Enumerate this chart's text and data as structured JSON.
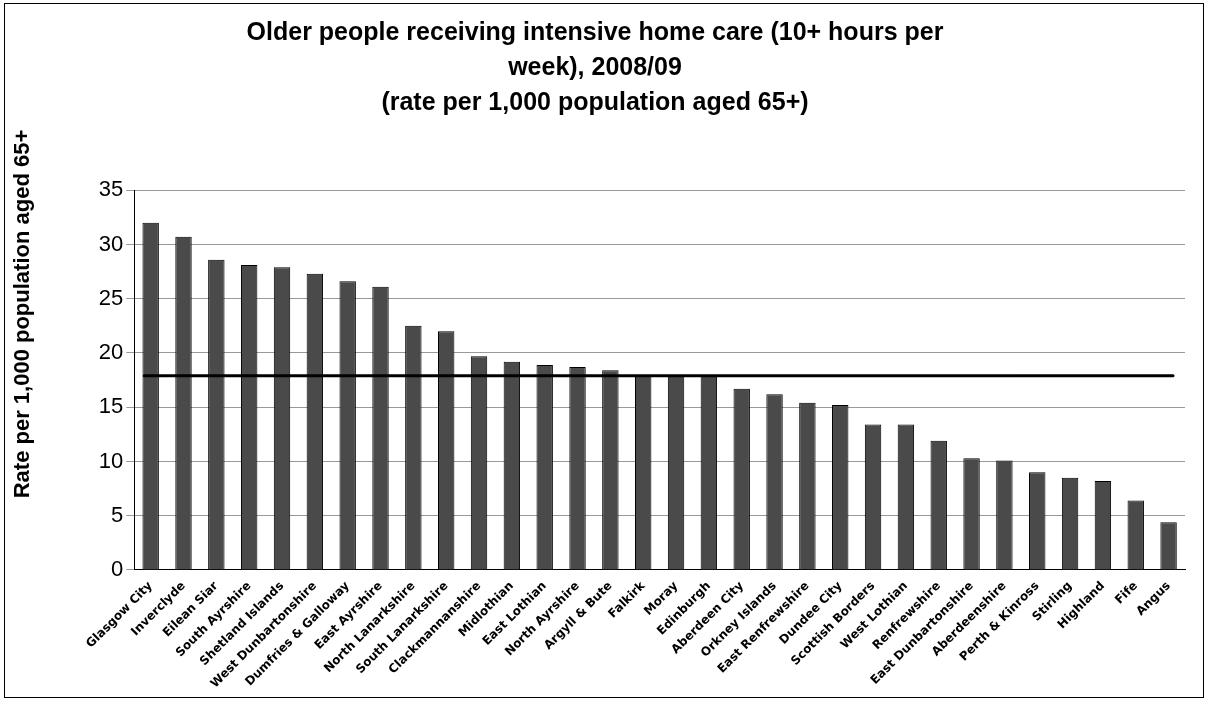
{
  "chart_data": {
    "type": "bar",
    "title": "Older people receiving intensive home care (10+ hours per week), 2008/09",
    "subtitle": "(rate per 1,000 population aged 65+)",
    "ylabel": "Rate per 1,000 population aged 65+",
    "categories": [
      "Glasgow City",
      "Inverclyde",
      "Eilean Siar",
      "South Ayrshire",
      "Shetland Islands",
      "West Dunbartonshire",
      "Dumfries & Galloway",
      "East Ayrshire",
      "North Lanarkshire",
      "South Lanarkshire",
      "Clackmannanshire",
      "Midlothian",
      "East Lothian",
      "North Ayrshire",
      "Argyll & Bute",
      "Falkirk",
      "Moray",
      "Edinburgh",
      "Aberdeen City",
      "Orkney Islands",
      "East Renfrewshire",
      "Dundee City",
      "Scottish Borders",
      "West Lothian",
      "Renfrewshire",
      "East Dunbartonshire",
      "Aberdeenshire",
      "Perth & Kinross",
      "Stirling",
      "Highland",
      "Fife",
      "Angus"
    ],
    "values": [
      32.0,
      30.7,
      28.6,
      28.1,
      27.9,
      27.3,
      26.6,
      26.1,
      22.5,
      22.0,
      19.7,
      19.2,
      18.9,
      18.7,
      18.4,
      17.9,
      17.9,
      17.9,
      16.7,
      16.2,
      15.4,
      15.2,
      13.4,
      13.4,
      11.9,
      10.3,
      10.1,
      9.0,
      8.5,
      8.2,
      6.4,
      4.4
    ],
    "color": "#4a4a4a",
    "ylim": [
      0,
      35
    ],
    "yticks": [
      0,
      5,
      10,
      15,
      20,
      25,
      30,
      35
    ],
    "grid": "y",
    "ref_lines": [
      {
        "axis": "y",
        "value": 17.9,
        "color": "#000000"
      }
    ]
  }
}
